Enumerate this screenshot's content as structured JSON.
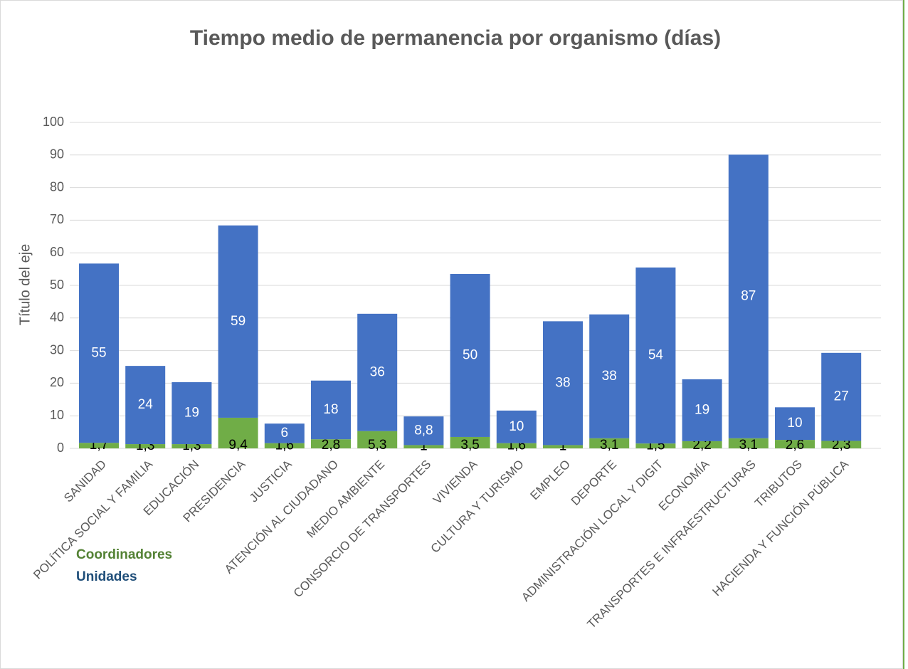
{
  "chart_data": {
    "type": "bar",
    "stacked": true,
    "title": "Tiempo medio de permanencia por organismo (días)",
    "y_label": "Título del eje",
    "categories": [
      "SANIDAD",
      "POLÍTICA SOCIAL Y FAMILIA",
      "EDUCACIÓN",
      "PRESIDENCIA",
      "JUSTICIA",
      "ATENCIÓN AL CIUDADANO",
      "MEDIO AMBIENTE",
      "CONSORCIO DE TRANSPORTES",
      "VIVIENDA",
      "CULTURA Y TURISMO",
      "EMPLEO",
      "DEPORTE",
      "ADMINISTRACIÓN LOCAL Y DIGIT",
      "ECONOMÍA",
      "TRANSPORTES E INFRAESTRUCTURAS",
      "TRIBUTOS",
      "HACIENDA Y FUNCIÓN PÚBLICA"
    ],
    "series": [
      {
        "name": "Coordinadores",
        "color": "#70ad47",
        "label_color": "#000000",
        "values": [
          1.7,
          1.3,
          1.3,
          9.4,
          1.6,
          2.8,
          5.3,
          1,
          3.5,
          1.6,
          1,
          3.1,
          1.5,
          2.2,
          3.1,
          2.6,
          2.3
        ],
        "value_labels": [
          "1,7",
          "1,3",
          "1,3",
          "9,4",
          "1,6",
          "2,8",
          "5,3",
          "1",
          "3,5",
          "1,6",
          "1",
          "3,1",
          "1,5",
          "2,2",
          "3,1",
          "2,6",
          "2,3"
        ]
      },
      {
        "name": "Unidades",
        "color": "#4472c4",
        "label_color": "#ffffff",
        "values": [
          55,
          24,
          19,
          59,
          6,
          18,
          36,
          8.8,
          50,
          10,
          38,
          38,
          54,
          19,
          87,
          10,
          27
        ],
        "value_labels": [
          "55",
          "24",
          "19",
          "59",
          "6",
          "18",
          "36",
          "8,8",
          "50",
          "10",
          "38",
          "38",
          "54",
          "19",
          "87",
          "10",
          "27"
        ]
      }
    ],
    "legend_colors": [
      "#548235",
      "#1f4e79"
    ],
    "legend": "bottom-left",
    "ylim": [
      0,
      100
    ],
    "yticks": [
      0,
      10,
      20,
      30,
      40,
      50,
      60,
      70,
      80,
      90,
      100
    ],
    "grid": true
  }
}
